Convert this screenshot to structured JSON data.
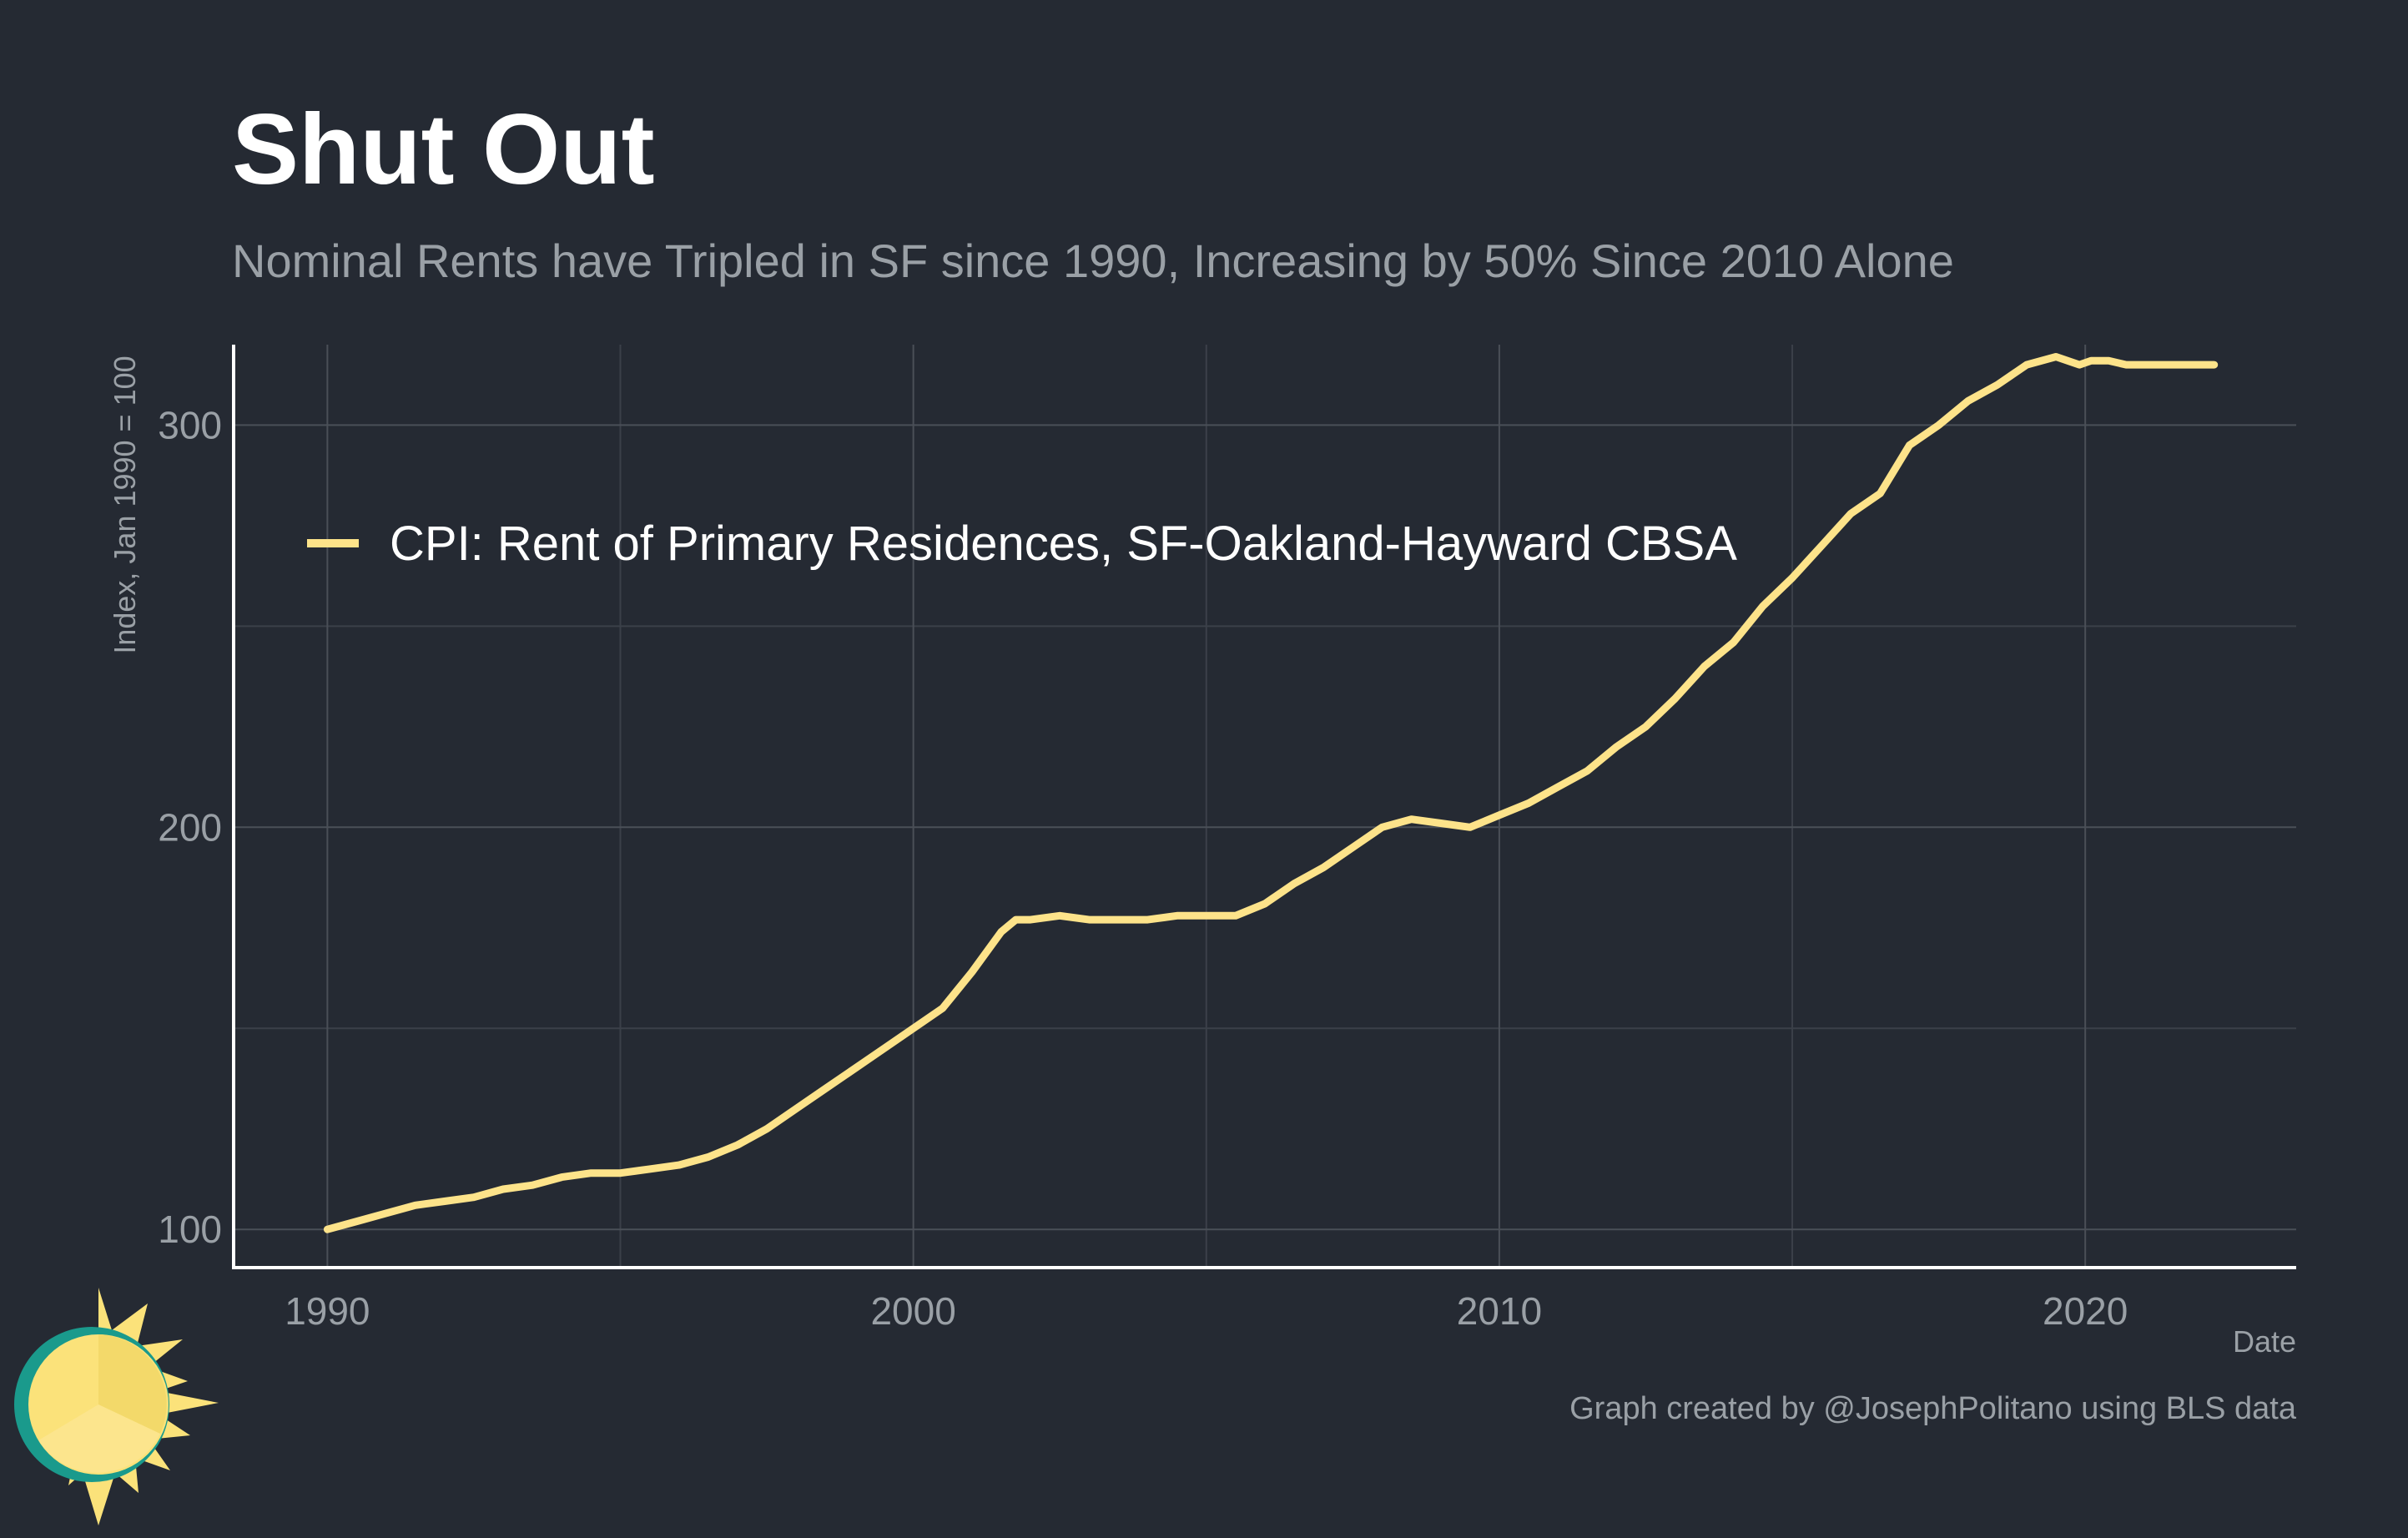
{
  "header": {
    "title": "Shut Out",
    "subtitle": "Nominal Rents have Tripled in SF since 1990, Increasing by 50% Since 2010 Alone"
  },
  "caption": "Graph created by @JosephPolitano using BLS data",
  "colors": {
    "background": "#252a33",
    "series": "#fde38a",
    "text": "#ffffff",
    "muted": "#9aa0a6",
    "logo_ring": "#1a9a8c",
    "logo_sun": "#fbe27a"
  },
  "logo": {
    "icon": "sun-icon"
  },
  "chart_data": {
    "type": "line",
    "title": "Shut Out",
    "subtitle": "Nominal Rents have Tripled in SF since 1990, Increasing by 50% Since 2010 Alone",
    "xlabel": "Date",
    "ylabel": "Index, Jan 1990 = 100",
    "xlim": [
      1988.4,
      2023.6
    ],
    "ylim": [
      90.5,
      320
    ],
    "x_ticks": [
      1990,
      2000,
      2010,
      2020
    ],
    "x_tick_labels": [
      "1990",
      "2000",
      "2010",
      "2020"
    ],
    "y_ticks": [
      100,
      200,
      300
    ],
    "y_tick_labels": [
      "100",
      "200",
      "300"
    ],
    "grid": true,
    "legend": {
      "position": "top-left"
    },
    "series": [
      {
        "name": "CPI: Rent of Primary Residences, SF-Oakland-Hayward CBSA",
        "color": "#fde38a",
        "x": [
          1990.0,
          1990.5,
          1991.0,
          1991.5,
          1992.0,
          1992.5,
          1993.0,
          1993.5,
          1994.0,
          1994.5,
          1995.0,
          1995.5,
          1996.0,
          1996.5,
          1997.0,
          1997.5,
          1998.0,
          1998.5,
          1999.0,
          1999.5,
          2000.0,
          2000.5,
          2001.0,
          2001.5,
          2001.75,
          2002.0,
          2002.5,
          2003.0,
          2003.5,
          2004.0,
          2004.5,
          2005.0,
          2005.5,
          2006.0,
          2006.5,
          2007.0,
          2007.5,
          2008.0,
          2008.5,
          2009.0,
          2009.5,
          2010.0,
          2010.5,
          2011.0,
          2011.5,
          2012.0,
          2012.5,
          2013.0,
          2013.5,
          2014.0,
          2014.5,
          2015.0,
          2015.5,
          2016.0,
          2016.5,
          2017.0,
          2017.5,
          2018.0,
          2018.5,
          2019.0,
          2019.5,
          2019.9,
          2020.1,
          2020.4,
          2020.7,
          2021.0,
          2021.5,
          2022.0,
          2022.2
        ],
        "values": [
          100,
          102,
          104,
          106,
          107,
          108,
          110,
          111,
          113,
          114,
          114,
          115,
          116,
          118,
          121,
          125,
          130,
          135,
          140,
          145,
          150,
          155,
          164,
          174,
          177,
          177,
          178,
          177,
          177,
          177,
          178,
          178,
          178,
          181,
          186,
          190,
          195,
          200,
          202,
          201,
          200,
          203,
          206,
          210,
          214,
          220,
          225,
          232,
          240,
          246,
          255,
          262,
          270,
          278,
          283,
          295,
          300,
          306,
          310,
          315,
          317,
          315,
          316,
          316,
          315,
          315,
          315,
          315,
          315
        ]
      }
    ]
  }
}
